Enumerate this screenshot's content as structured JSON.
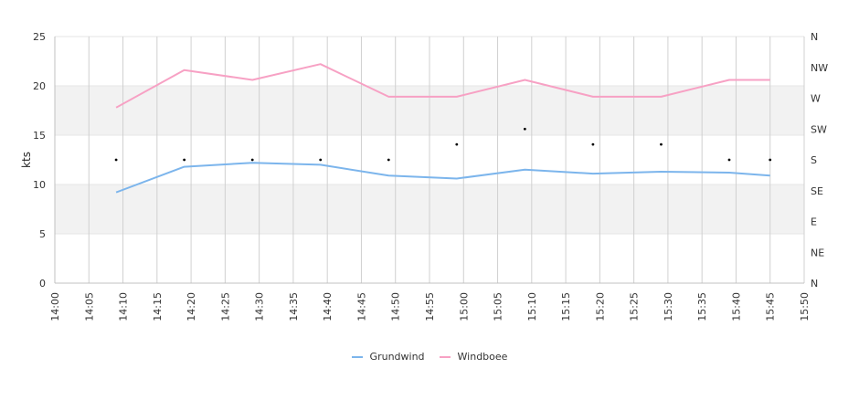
{
  "chart_data": {
    "type": "line",
    "title": "",
    "xlabel": "",
    "ylabel": "kts",
    "ylim": [
      0,
      25
    ],
    "y_ticks": [
      "0",
      "5",
      "10",
      "15",
      "20",
      "25"
    ],
    "x_ticks": [
      "14:00",
      "14:05",
      "14:10",
      "14:15",
      "14:20",
      "14:25",
      "14:30",
      "14:35",
      "14:40",
      "14:45",
      "14:50",
      "14:55",
      "15:00",
      "15:05",
      "15:10",
      "15:15",
      "15:20",
      "15:25",
      "15:30",
      "15:35",
      "15:40",
      "15:45",
      "15:50"
    ],
    "y2_ticks": [
      "N",
      "NE",
      "E",
      "SE",
      "S",
      "SW",
      "W",
      "NW",
      "N"
    ],
    "grid": true,
    "legend_position": "bottom",
    "x": [
      "14:09",
      "14:19",
      "14:29",
      "14:39",
      "14:49",
      "14:59",
      "15:09",
      "15:19",
      "15:29",
      "15:39",
      "15:45"
    ],
    "series": [
      {
        "name": "Grundwind",
        "color": "#7cb5ec",
        "values": [
          9.2,
          11.8,
          12.2,
          12.0,
          10.9,
          10.6,
          11.5,
          11.1,
          11.3,
          11.2,
          10.9
        ]
      },
      {
        "name": "Windboee",
        "color": "#f7a1c4",
        "values": [
          17.8,
          21.6,
          20.6,
          22.2,
          18.9,
          18.9,
          20.6,
          18.9,
          18.9,
          20.6,
          20.6
        ]
      }
    ],
    "direction": {
      "x": [
        "14:09",
        "14:19",
        "14:29",
        "14:39",
        "14:49",
        "14:59",
        "15:09",
        "15:19",
        "15:29",
        "15:39",
        "15:45"
      ],
      "values": [
        "S",
        "S",
        "S",
        "S",
        "S",
        "S/SW",
        "SW",
        "S/SW",
        "S/SW",
        "S",
        "S"
      ],
      "color": "#000000"
    }
  }
}
